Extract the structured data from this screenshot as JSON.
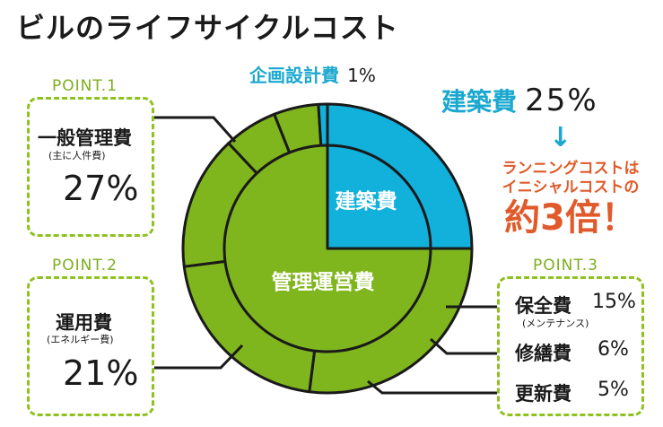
{
  "title": "ビルのライフサイクルコスト",
  "chart_data": {
    "type": "pie",
    "outer_ring": [
      {
        "name": "建築費",
        "value": 25,
        "color": "#12b1dc"
      },
      {
        "name": "一般管理費",
        "value": 27,
        "color": "#7fb51d"
      },
      {
        "name": "運用費",
        "value": 21,
        "color": "#7fb51d"
      },
      {
        "name": "保全費",
        "value": 15,
        "color": "#7fb51d"
      },
      {
        "name": "修繕費",
        "value": 6,
        "color": "#7fb51d"
      },
      {
        "name": "更新費",
        "value": 5,
        "color": "#7fb51d"
      },
      {
        "name": "企画設計費",
        "value": 1,
        "color": "#12b1dc"
      }
    ],
    "inner_pie": [
      {
        "name": "建築費",
        "value": 25,
        "color": "#12b1dc"
      },
      {
        "name": "管理運営費",
        "value": 75,
        "color": "#7fb51d"
      }
    ]
  },
  "labels": {
    "planning": {
      "name": "企画設計費",
      "pct": "1%"
    },
    "construction": {
      "name": "建築費",
      "pct": "25%"
    },
    "arrow": "↓",
    "callout": {
      "line1": "ランニングコストは",
      "line2": "イニシャルコストの",
      "line3": "約3倍！"
    },
    "point1": {
      "tag": "POINT.1",
      "name": "一般管理費",
      "sub": "(主に人件費)",
      "pct": "27%"
    },
    "point2": {
      "tag": "POINT.2",
      "name": "運用費",
      "sub": "(エネルギー費)",
      "pct": "21%"
    },
    "point3": {
      "tag": "POINT.3",
      "items": [
        {
          "name": "保全費",
          "pct": "15%",
          "sub": "(メンテナンス)"
        },
        {
          "name": "修繕費",
          "pct": "6%"
        },
        {
          "name": "更新費",
          "pct": "5%"
        }
      ]
    },
    "inner": {
      "construction": "建築費",
      "management": "管理運営費"
    }
  },
  "colors": {
    "cyan": "#12b1dc",
    "green": "#7fb51d",
    "accent_red": "#e05a2b",
    "dash_green": "#8dc21f"
  }
}
